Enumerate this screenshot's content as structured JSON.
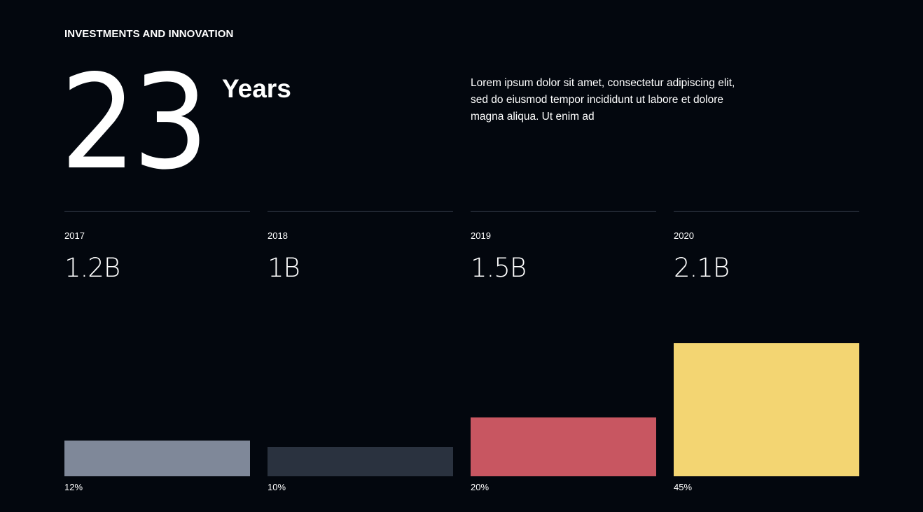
{
  "header": {
    "eyebrow": "INVESTMENTS AND INNOVATION"
  },
  "hero": {
    "number": "23",
    "unit": "Years",
    "description": "Lorem ipsum dolor sit amet, consectetur adipiscing elit, sed do eiusmod tempor incididunt ut labore et dolore magna aliqua. Ut enim ad"
  },
  "chart_data": {
    "type": "bar",
    "categories": [
      "2017",
      "2018",
      "2019",
      "2020"
    ],
    "amount_labels": [
      "1.2B",
      "1B",
      "1.5B",
      "2.1B"
    ],
    "values": [
      12,
      10,
      20,
      45
    ],
    "value_labels": [
      "12%",
      "10%",
      "20%",
      "45%"
    ],
    "colors": [
      "#7f8899",
      "#2a323f",
      "#c85661",
      "#f3d572"
    ],
    "ylim": [
      0,
      45
    ]
  }
}
